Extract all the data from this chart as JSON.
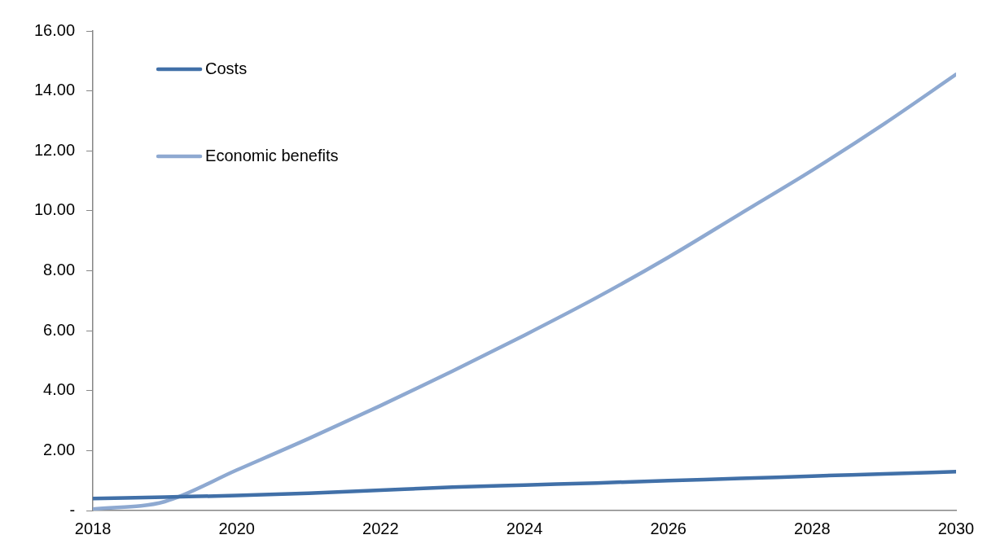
{
  "chart_data": {
    "type": "line",
    "x": [
      2018,
      2019,
      2020,
      2021,
      2022,
      2023,
      2024,
      2025,
      2026,
      2027,
      2028,
      2029,
      2030
    ],
    "series": [
      {
        "name": "Costs",
        "color": "#4170a8",
        "values": [
          0.4,
          0.45,
          0.5,
          0.58,
          0.68,
          0.78,
          0.85,
          0.92,
          1.0,
          1.07,
          1.15,
          1.22,
          1.3
        ]
      },
      {
        "name": "Economic benefits",
        "color": "#8ea9d1",
        "values": [
          0.05,
          0.3,
          1.35,
          2.4,
          3.5,
          4.65,
          5.85,
          7.1,
          8.45,
          9.9,
          11.35,
          12.9,
          14.55
        ]
      }
    ],
    "xlim": [
      2018,
      2030
    ],
    "xticks": [
      2018,
      2020,
      2022,
      2024,
      2026,
      2028,
      2030
    ],
    "ylim": [
      0,
      16
    ],
    "yticks": [
      {
        "value": 0,
        "label": "-"
      },
      {
        "value": 2,
        "label": "2.00"
      },
      {
        "value": 4,
        "label": "4.00"
      },
      {
        "value": 6,
        "label": "6.00"
      },
      {
        "value": 8,
        "label": "8.00"
      },
      {
        "value": 10,
        "label": "10.00"
      },
      {
        "value": 12,
        "label": "12.00"
      },
      {
        "value": 14,
        "label": "14.00"
      },
      {
        "value": 16,
        "label": "16.00"
      }
    ],
    "grid": false,
    "legend": "top left",
    "marker": "none",
    "line_style": "solid"
  }
}
